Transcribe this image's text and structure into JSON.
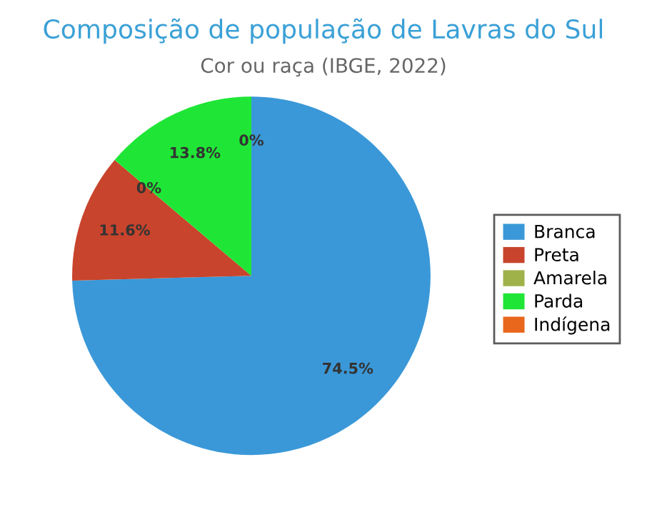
{
  "chart_data": {
    "type": "pie",
    "title": "Composição de população de Lavras do Sul",
    "subtitle": "Cor ou raça (IBGE, 2022)",
    "categories": [
      "Branca",
      "Preta",
      "Amarela",
      "Parda",
      "Indígena"
    ],
    "values": [
      74.5,
      11.6,
      0,
      13.8,
      0
    ],
    "colors": [
      "#3a98d8",
      "#c8442c",
      "#9fb24a",
      "#1fe636",
      "#e8671c"
    ],
    "value_labels": [
      "74.5%",
      "11.6%",
      "0%",
      "13.8%",
      "0%"
    ],
    "legend": "right"
  }
}
